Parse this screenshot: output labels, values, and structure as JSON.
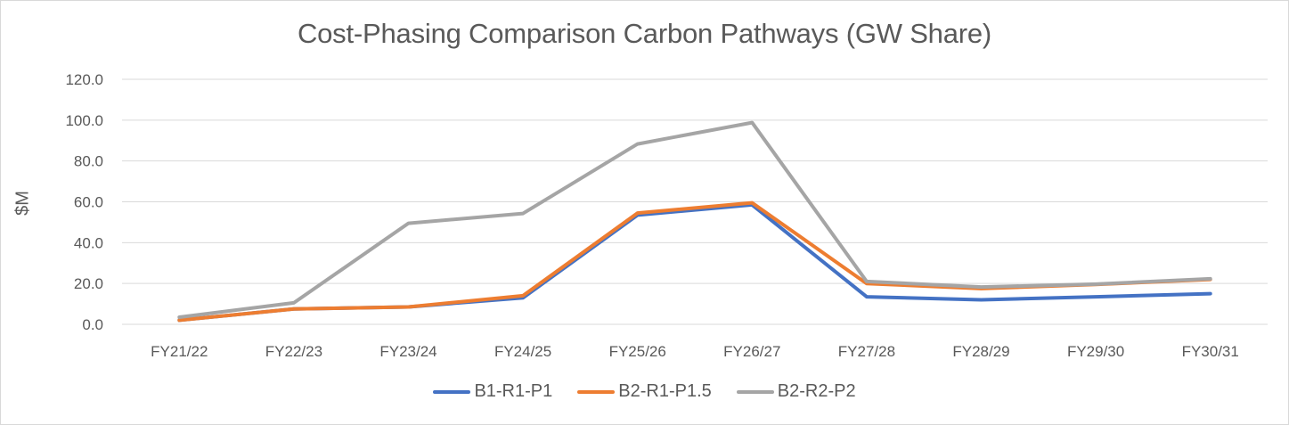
{
  "chart_data": {
    "type": "line",
    "title": "Cost-Phasing Comparison Carbon Pathways (GW Share)",
    "xlabel": "",
    "ylabel": "$M",
    "ylim": [
      0,
      120
    ],
    "yticks": [
      0,
      20,
      40,
      60,
      80,
      100,
      120
    ],
    "ytick_labels": [
      "0.0",
      "20.0",
      "40.0",
      "60.0",
      "80.0",
      "100.0",
      "120.0"
    ],
    "grid": true,
    "legend_position": "bottom",
    "categories": [
      "FY21/22",
      "FY22/23",
      "FY23/24",
      "FY24/25",
      "FY25/26",
      "FY26/27",
      "FY27/28",
      "FY28/29",
      "FY29/30",
      "FY30/31"
    ],
    "series": [
      {
        "name": "B1-R1-P1",
        "color": "#4472c4",
        "values": [
          2.0,
          7.5,
          8.5,
          13.0,
          53.5,
          58.5,
          13.5,
          12.0,
          13.5,
          15.0
        ]
      },
      {
        "name": "B2-R1-P1.5",
        "color": "#ed7d31",
        "values": [
          2.0,
          7.5,
          8.5,
          14.0,
          54.5,
          59.5,
          20.0,
          17.5,
          19.5,
          22.0
        ]
      },
      {
        "name": "B2-R2-P2",
        "color": "#a5a5a5",
        "values": [
          3.5,
          10.5,
          49.5,
          54.3,
          88.3,
          98.8,
          21.0,
          18.3,
          19.7,
          22.3
        ]
      }
    ]
  }
}
